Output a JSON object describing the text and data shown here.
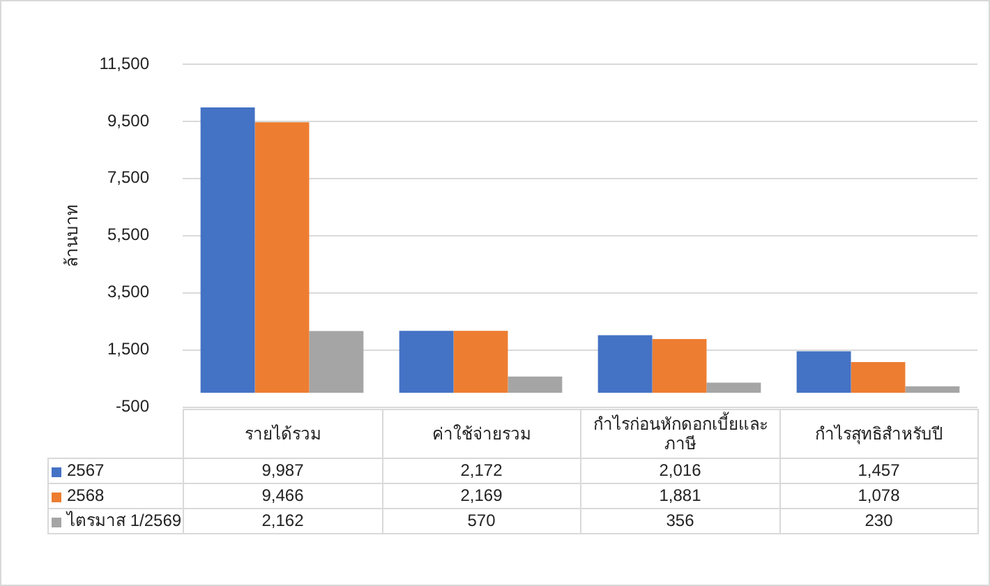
{
  "chart_data": {
    "type": "bar",
    "ylabel": "ล้านบาท",
    "categories": [
      "รายได้รวม",
      "ค่าใช้จ่ายรวม",
      "กำไรก่อนหักดอกเบี้ยและภาษี",
      "กำไรสุทธิสำหรับปี"
    ],
    "series": [
      {
        "name": "2567",
        "color": "#4472c4",
        "values": [
          9987,
          2172,
          2016,
          1457
        ],
        "value_labels": [
          "9,987",
          "2,172",
          "2,016",
          "1,457"
        ]
      },
      {
        "name": "2568",
        "color": "#ed7d31",
        "values": [
          9466,
          2169,
          1881,
          1078
        ],
        "value_labels": [
          "9,466",
          "2,169",
          "1,881",
          "1,078"
        ]
      },
      {
        "name": "ไตรมาส 1/2569",
        "color": "#a5a5a5",
        "values": [
          2162,
          570,
          356,
          230
        ],
        "value_labels": [
          "2,162",
          "570",
          "356",
          "230"
        ]
      }
    ],
    "ylim": [
      -500,
      11500
    ],
    "yticks": [
      {
        "value": -500,
        "label": "-500"
      },
      {
        "value": 1500,
        "label": "1,500"
      },
      {
        "value": 3500,
        "label": "3,500"
      },
      {
        "value": 5500,
        "label": "5,500"
      },
      {
        "value": 7500,
        "label": "7,500"
      },
      {
        "value": 9500,
        "label": "9,500"
      },
      {
        "value": 11500,
        "label": "11,500"
      }
    ],
    "grid": "y",
    "legend": "bottom"
  }
}
